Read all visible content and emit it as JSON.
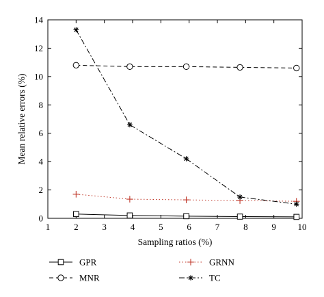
{
  "chart_data": {
    "type": "line",
    "xlabel": "Sampling ratios (%)",
    "ylabel": "Mean relative errors (%)",
    "xlim": [
      1,
      10
    ],
    "ylim": [
      0,
      14
    ],
    "xticks": [
      1,
      2,
      3,
      4,
      5,
      6,
      7,
      8,
      9,
      10
    ],
    "yticks": [
      0,
      2,
      4,
      6,
      8,
      10,
      12,
      14
    ],
    "x": [
      2,
      3.9,
      5.9,
      7.8,
      9.8
    ],
    "grid": false,
    "legend_position": "below plot",
    "series": [
      {
        "name": "GPR",
        "values": [
          0.3,
          0.2,
          0.15,
          0.12,
          0.1
        ],
        "color": "#000000",
        "dash": "solid",
        "marker": "square"
      },
      {
        "name": "MNR",
        "values": [
          10.8,
          10.7,
          10.7,
          10.65,
          10.6
        ],
        "color": "#000000",
        "dash": "dashed",
        "marker": "circle"
      },
      {
        "name": "GRNN",
        "values": [
          1.7,
          1.35,
          1.3,
          1.25,
          1.2
        ],
        "color": "#c0392b",
        "dash": "dotted",
        "marker": "plus"
      },
      {
        "name": "TC",
        "values": [
          13.3,
          6.6,
          4.2,
          1.5,
          1.0
        ],
        "color": "#000000",
        "dash": "dashdot",
        "marker": "star"
      }
    ]
  }
}
